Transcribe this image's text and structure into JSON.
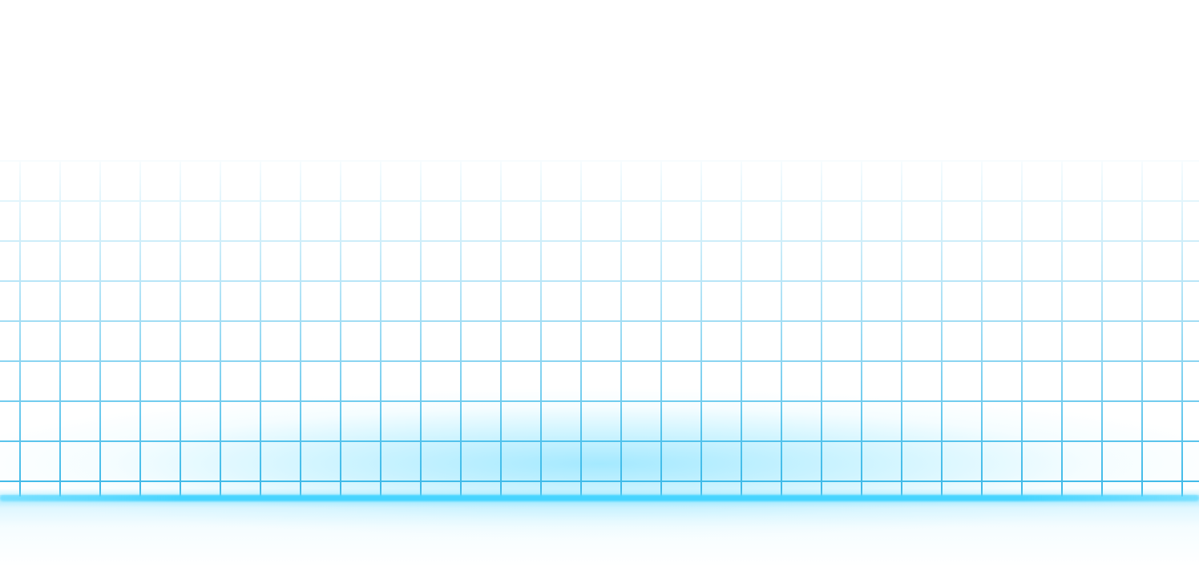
{
  "scene": {
    "description_color_accent": "#3ab8e8",
    "glow_color": "#46d4ff",
    "background_color": "#ffffff"
  }
}
